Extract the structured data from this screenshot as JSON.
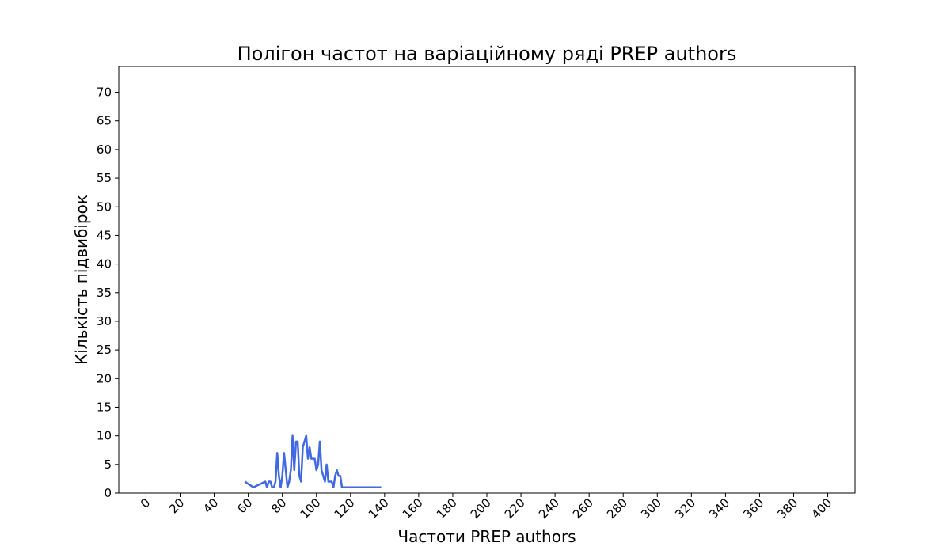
{
  "colors": {
    "series": "#4169e1",
    "background": "#ffffff",
    "frame": "#000000"
  },
  "chart_data": {
    "type": "line",
    "title": "Полігон частот на варіаційному ряді PREP authors",
    "xlabel": "Частоти PREP authors",
    "ylabel": "Кількість підвибірок",
    "xlim": [
      -16,
      416
    ],
    "ylim": [
      0,
      74.5
    ],
    "xticks": [
      0,
      20,
      40,
      60,
      80,
      100,
      120,
      140,
      160,
      180,
      200,
      220,
      240,
      260,
      280,
      300,
      320,
      340,
      360,
      380,
      400
    ],
    "yticks": [
      0,
      5,
      10,
      15,
      20,
      25,
      30,
      35,
      40,
      45,
      50,
      55,
      60,
      65,
      70
    ],
    "xtick_rotation": -45,
    "grid": false,
    "legend": "none",
    "series": [
      {
        "x": [
          58,
          63,
          70,
          71,
          72,
          73,
          74,
          75,
          76,
          77,
          78,
          79,
          80,
          81,
          82,
          83,
          84,
          85,
          86,
          87,
          88,
          89,
          90,
          91,
          92,
          93,
          94,
          95,
          96,
          97,
          98,
          99,
          100,
          101,
          102,
          103,
          104,
          105,
          106,
          107,
          108,
          109,
          110,
          111,
          112,
          113,
          114,
          115,
          120,
          125,
          130,
          135,
          138
        ],
        "y": [
          2,
          1,
          2,
          1,
          2,
          2,
          1,
          1,
          2,
          7,
          3,
          1,
          3,
          7,
          4,
          1,
          2,
          4,
          10,
          4,
          9,
          9,
          3,
          2,
          8,
          9,
          10,
          6,
          8,
          6,
          6,
          6,
          4,
          5,
          9,
          4,
          3,
          2,
          5,
          2,
          2,
          2,
          1,
          3,
          4,
          3,
          3,
          1,
          1,
          1,
          1,
          1,
          1
        ]
      }
    ]
  }
}
